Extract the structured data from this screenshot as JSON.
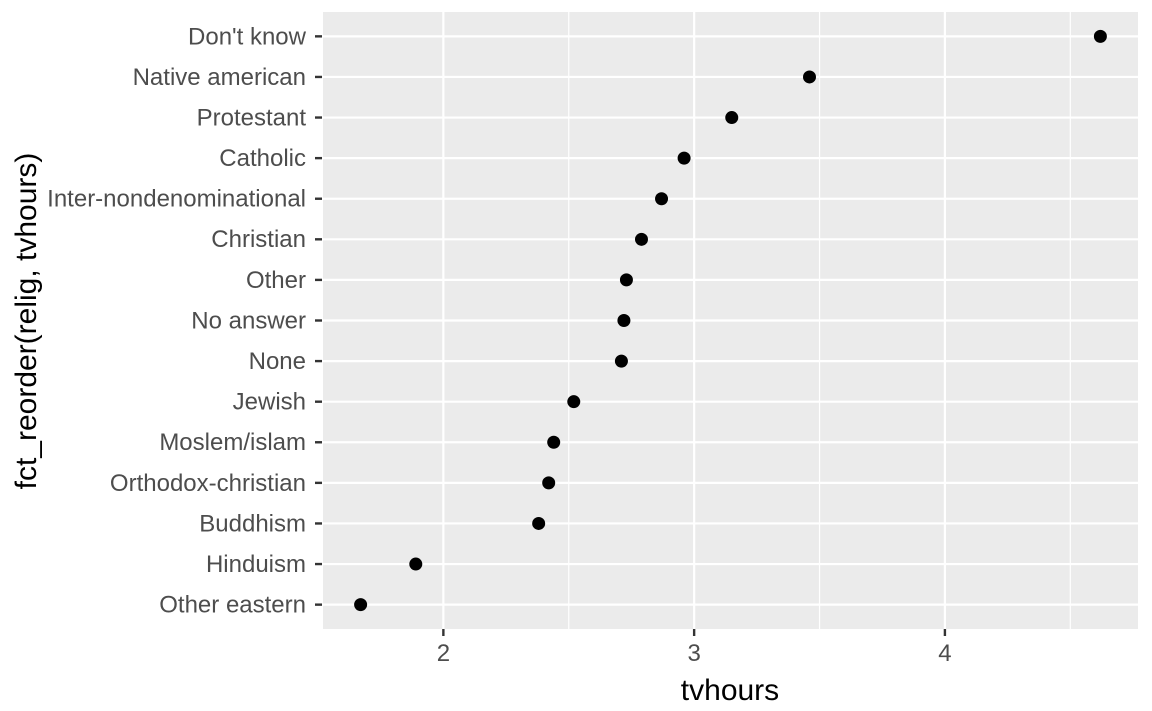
{
  "figure": {
    "background": "#FFFFFF"
  },
  "chart_data": {
    "type": "scatter",
    "title": "",
    "xlabel": "tvhours",
    "ylabel": "fct_reorder(relig, tvhours)",
    "categories": [
      "Don't know",
      "Native american",
      "Protestant",
      "Catholic",
      "Inter-nondenominational",
      "Christian",
      "Other",
      "No answer",
      "None",
      "Jewish",
      "Moslem/islam",
      "Orthodox-christian",
      "Buddhism",
      "Hinduism",
      "Other eastern"
    ],
    "values": [
      4.62,
      3.46,
      3.15,
      2.96,
      2.87,
      2.79,
      2.73,
      2.72,
      2.71,
      2.52,
      2.44,
      2.42,
      2.38,
      1.89,
      1.67
    ],
    "xlim": [
      1.52,
      4.77
    ],
    "x_major_ticks": [
      2,
      3,
      4
    ],
    "x_minor_gridlines": [
      2.5,
      3.5,
      4.5
    ],
    "grid": "on",
    "legend": "none",
    "style": {
      "panel_bg": "#EBEBEB",
      "grid_color": "#FFFFFF",
      "point_color": "#000000",
      "axis_text_color": "#4D4D4D",
      "axis_title_color": "#000000",
      "tick_color": "#333333"
    }
  }
}
